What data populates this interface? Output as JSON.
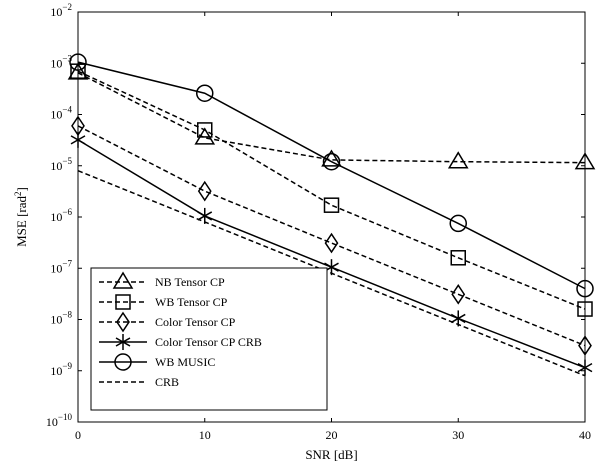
{
  "chart_data": {
    "type": "line",
    "xlabel": "SNR [dB]",
    "ylabel_prefix": "MSE [rad",
    "ylabel_sup": "2",
    "ylabel_suffix": "]",
    "x": [
      0,
      10,
      20,
      30,
      40
    ],
    "xlim": [
      0,
      40
    ],
    "ylim": [
      1e-10,
      0.01
    ],
    "yscale": "log",
    "x_ticks": [
      "0",
      "10",
      "20",
      "30",
      "40"
    ],
    "y_ticks": [
      {
        "base": "10",
        "exp": "−2",
        "value": 0.01
      },
      {
        "base": "10",
        "exp": "−3",
        "value": 0.001
      },
      {
        "base": "10",
        "exp": "−4",
        "value": 0.0001
      },
      {
        "base": "10",
        "exp": "−5",
        "value": 1e-05
      },
      {
        "base": "10",
        "exp": "−6",
        "value": 1e-06
      },
      {
        "base": "10",
        "exp": "−7",
        "value": 1e-07
      },
      {
        "base": "10",
        "exp": "−8",
        "value": 1e-08
      },
      {
        "base": "10",
        "exp": "−9",
        "value": 1e-09
      },
      {
        "base": "10",
        "exp": "−10",
        "value": 1e-10
      }
    ],
    "grid": false,
    "legend_position": "bottom-left",
    "series": [
      {
        "name": "NB Tensor CP",
        "marker": "triangle",
        "dash": "dashed",
        "values": [
          0.00065,
          3.5e-05,
          1.3e-05,
          1.2e-05,
          1.15e-05
        ]
      },
      {
        "name": "WB Tensor CP",
        "marker": "square",
        "dash": "dashed",
        "values": [
          0.0007,
          5e-05,
          1.7e-06,
          1.6e-07,
          1.6e-08
        ]
      },
      {
        "name": "Color Tensor CP",
        "marker": "diamond",
        "dash": "dashed",
        "values": [
          6e-05,
          3.2e-06,
          3.1e-07,
          3.1e-08,
          3.1e-09
        ]
      },
      {
        "name": "Color Tensor CP CRB",
        "marker": "asterisk",
        "dash": "solid",
        "values": [
          3.2e-05,
          1.05e-06,
          1.05e-07,
          1.05e-08,
          1.15e-09
        ]
      },
      {
        "name": "WB MUSIC",
        "marker": "circle",
        "dash": "solid",
        "values": [
          0.00105,
          0.00026,
          1.2e-05,
          7.5e-07,
          4e-08
        ]
      },
      {
        "name": "CRB",
        "marker": "none",
        "dash": "dashed",
        "values": [
          8e-06,
          8e-07,
          8e-08,
          8e-09,
          8e-10
        ]
      }
    ]
  }
}
